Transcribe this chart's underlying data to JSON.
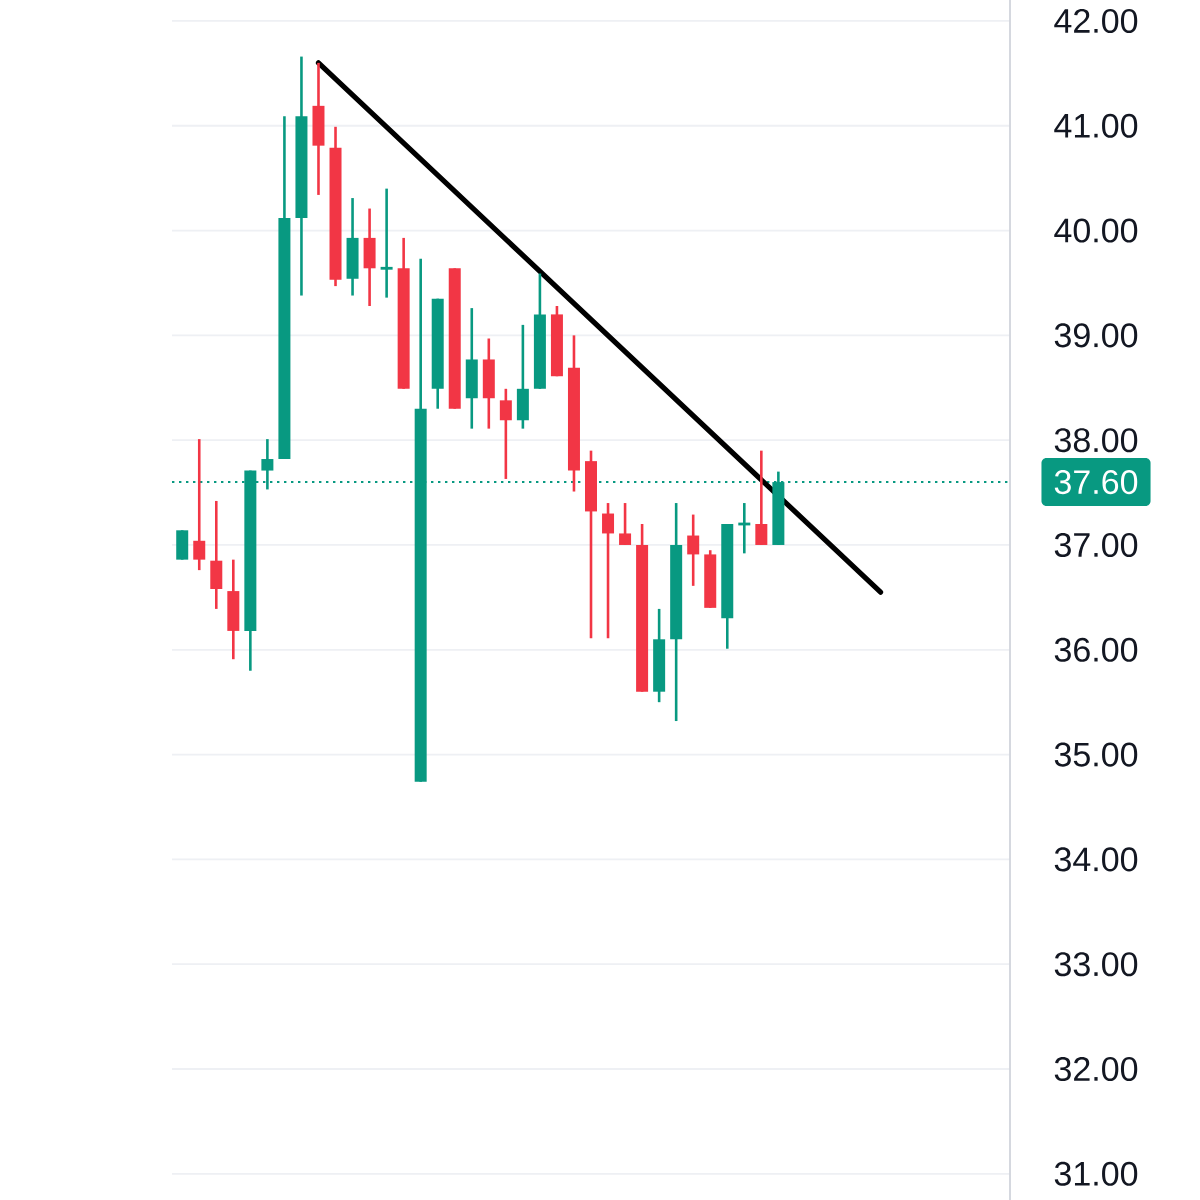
{
  "chart_data": {
    "type": "candlestick",
    "categories": [
      null,
      null,
      null,
      null,
      null,
      null,
      null,
      null,
      null,
      null,
      null,
      null,
      null,
      null,
      null,
      null,
      null,
      null,
      null,
      null,
      null,
      null,
      null,
      null,
      null,
      null,
      null,
      null,
      null,
      null,
      null,
      null,
      null,
      null,
      null,
      null,
      null,
      null,
      null,
      null,
      null,
      null,
      null,
      null,
      null,
      null,
      null,
      null,
      null
    ],
    "ohlc": [
      [
        36.86,
        37.14,
        36.86,
        37.14
      ],
      [
        37.04,
        38.01,
        36.76,
        36.86
      ],
      [
        36.85,
        37.42,
        36.39,
        36.58
      ],
      [
        36.56,
        36.86,
        35.91,
        36.18
      ],
      [
        36.18,
        37.71,
        35.8,
        37.71
      ],
      [
        37.71,
        38.01,
        37.53,
        37.82
      ],
      [
        37.82,
        41.09,
        37.82,
        40.12
      ],
      [
        40.12,
        41.66,
        39.38,
        41.09
      ],
      [
        41.19,
        41.6,
        40.34,
        40.81
      ],
      [
        40.79,
        40.99,
        39.47,
        39.53
      ],
      [
        39.54,
        40.31,
        39.38,
        39.93
      ],
      [
        39.93,
        40.21,
        39.28,
        39.64
      ],
      [
        39.64,
        40.4,
        39.36,
        39.64
      ],
      [
        39.64,
        39.93,
        38.49,
        38.49
      ],
      [
        34.74,
        39.73,
        34.74,
        38.3
      ],
      [
        38.49,
        39.35,
        38.3,
        39.35
      ],
      [
        39.64,
        39.64,
        38.3,
        38.3
      ],
      [
        38.4,
        39.26,
        38.11,
        38.77
      ],
      [
        38.77,
        38.97,
        38.11,
        38.4
      ],
      [
        38.38,
        38.49,
        37.63,
        38.19
      ],
      [
        38.19,
        39.1,
        38.11,
        38.49
      ],
      [
        38.49,
        39.59,
        38.49,
        39.2
      ],
      [
        39.2,
        39.28,
        38.61,
        38.61
      ],
      [
        38.69,
        39.0,
        37.51,
        37.71
      ],
      [
        37.8,
        37.9,
        36.11,
        37.32
      ],
      [
        37.3,
        37.4,
        36.11,
        37.11
      ],
      [
        37.11,
        37.4,
        37.0,
        37.0
      ],
      [
        37.0,
        37.2,
        35.6,
        35.6
      ],
      [
        35.6,
        36.39,
        35.5,
        36.1
      ],
      [
        36.1,
        37.4,
        35.32,
        37.0
      ],
      [
        37.09,
        37.29,
        36.61,
        36.91
      ],
      [
        36.91,
        36.95,
        36.4,
        36.4
      ],
      [
        36.3,
        37.2,
        36.01,
        37.2
      ],
      [
        37.2,
        37.4,
        36.92,
        37.2
      ],
      [
        37.2,
        37.9,
        37.0,
        37.0
      ],
      [
        37.0,
        37.7,
        37.0,
        37.6
      ],
      null,
      null,
      null,
      null,
      null,
      null,
      null,
      null,
      null,
      null,
      null,
      null,
      null
    ],
    "colors": [
      "#089981",
      "#f23645",
      "#f23645",
      "#f23645",
      "#089981",
      "#089981",
      "#089981",
      "#089981",
      "#f23645",
      "#f23645",
      "#089981",
      "#f23645",
      "#089981",
      "#f23645",
      "#089981",
      "#089981",
      "#f23645",
      "#089981",
      "#f23645",
      "#f23645",
      "#089981",
      "#089981",
      "#f23645",
      "#f23645",
      "#f23645",
      "#f23645",
      "#f23645",
      "#f23645",
      "#089981",
      "#089981",
      "#f23645",
      "#f23645",
      "#089981",
      "#089981",
      "#f23645",
      "#089981",
      null,
      null,
      null,
      null,
      null,
      null,
      null,
      null,
      null,
      null,
      null,
      null,
      null
    ],
    "series": [
      {
        "type": "line",
        "values": [
          null,
          null,
          null,
          null,
          null,
          null,
          null,
          null,
          41.6,
          null,
          null,
          null,
          null,
          null,
          null,
          null,
          null,
          null,
          null,
          null,
          null,
          null,
          null,
          null,
          null,
          null,
          null,
          null,
          null,
          null,
          null,
          null,
          null,
          null,
          null,
          null,
          null,
          null,
          null,
          null,
          null,
          36.55,
          null,
          null,
          null,
          null,
          null,
          null,
          null
        ],
        "color": "#000000"
      }
    ],
    "ylim": [
      30.75,
      42.2
    ],
    "yticks": [
      {
        "value": 31,
        "label": "31.00"
      },
      {
        "value": 32,
        "label": "32.00"
      },
      {
        "value": 33,
        "label": "33.00"
      },
      {
        "value": 34,
        "label": "34.00"
      },
      {
        "value": 35,
        "label": "35.00"
      },
      {
        "value": 36,
        "label": "36.00"
      },
      {
        "value": 37,
        "label": "37.00"
      },
      {
        "value": 38,
        "label": "38.00"
      },
      {
        "value": 39,
        "label": "39.00"
      },
      {
        "value": 40,
        "label": "40.00"
      },
      {
        "value": 41,
        "label": "41.00"
      },
      {
        "value": 42,
        "label": "42.00"
      }
    ],
    "grid": "y",
    "ref_lines": [
      {
        "axis": "y",
        "value": 37.6,
        "label": "37.60",
        "color": "#089981",
        "line_style": "dotted"
      }
    ]
  }
}
